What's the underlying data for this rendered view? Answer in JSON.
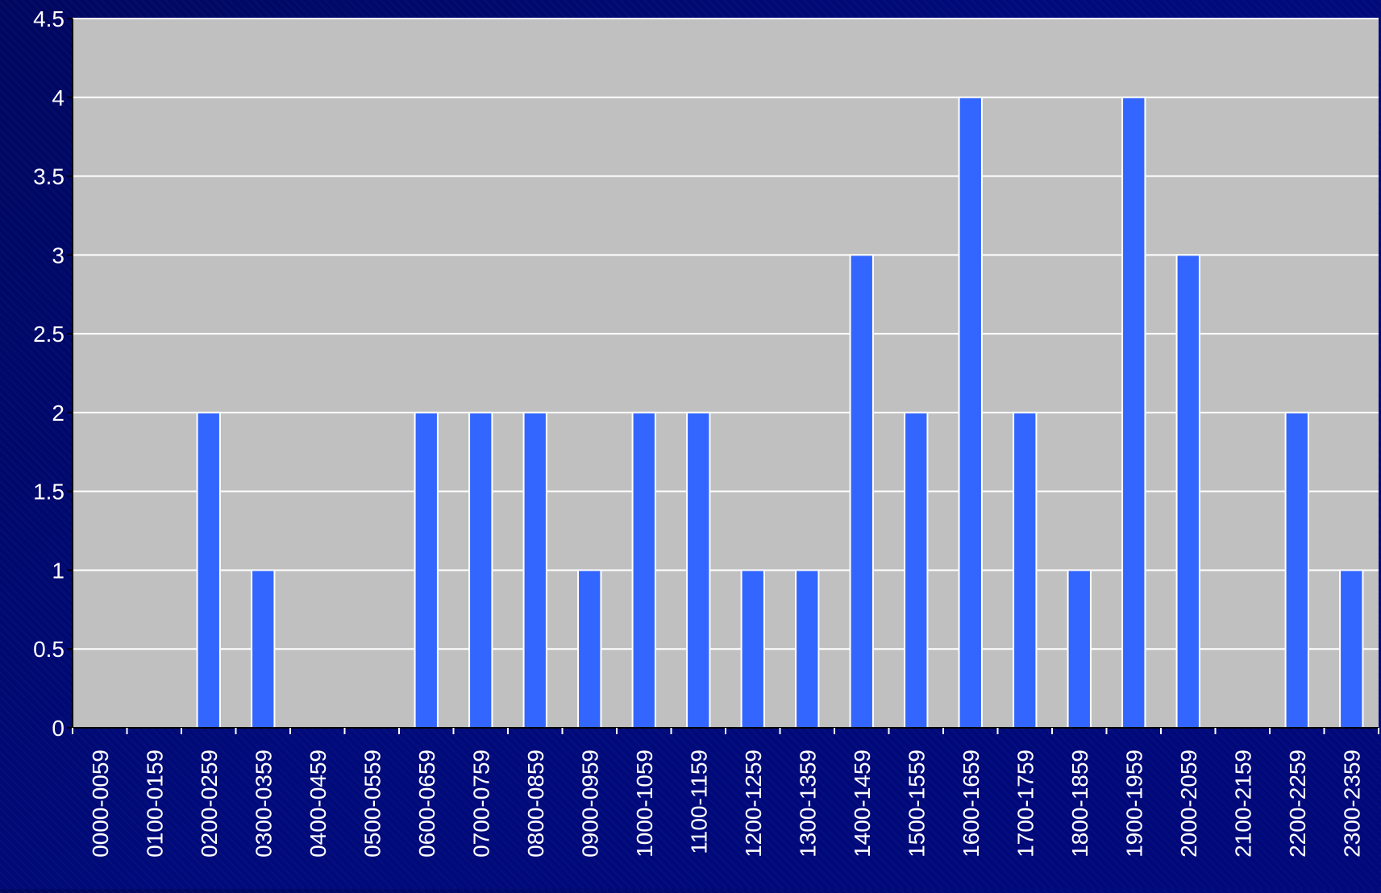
{
  "colors": {
    "background": "#000a78",
    "plot_area": "#c0c0c0",
    "gridline": "#ffffff",
    "bar_fill": "#3366ff",
    "bar_stroke": "#ffffff",
    "tick_label": "#ffffff"
  },
  "chart_data": {
    "type": "bar",
    "title": "",
    "xlabel": "",
    "ylabel": "",
    "ylim": [
      0,
      4.5
    ],
    "y_ticks": [
      "0",
      "0.5",
      "1",
      "1.5",
      "2",
      "2.5",
      "3",
      "3.5",
      "4",
      "4.5"
    ],
    "grid": true,
    "legend": "none",
    "categories": [
      "0000-0059",
      "0100-0159",
      "0200-0259",
      "0300-0359",
      "0400-0459",
      "0500-0559",
      "0600-0659",
      "0700-0759",
      "0800-0859",
      "0900-0959",
      "1000-1059",
      "1100-1159",
      "1200-1259",
      "1300-1359",
      "1400-1459",
      "1500-1559",
      "1600-1659",
      "1700-1759",
      "1800-1859",
      "1900-1959",
      "2000-2059",
      "2100-2159",
      "2200-2259",
      "2300-2359"
    ],
    "values": [
      0,
      0,
      2,
      1,
      0,
      0,
      2,
      2,
      2,
      1,
      2,
      2,
      1,
      1,
      3,
      2,
      4,
      2,
      1,
      4,
      3,
      0,
      2,
      1
    ]
  }
}
